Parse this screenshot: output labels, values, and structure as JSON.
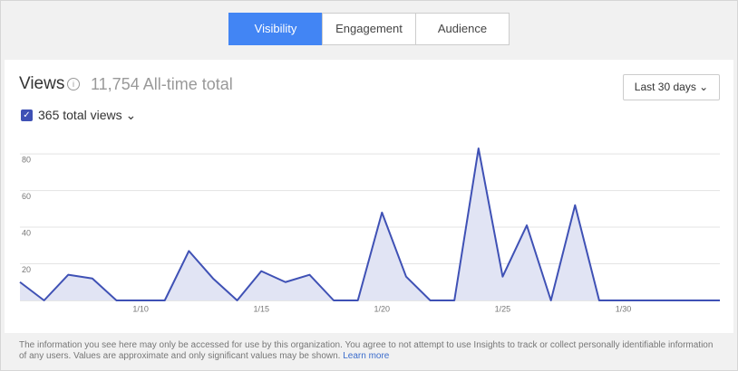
{
  "tabs": [
    "Visibility",
    "Engagement",
    "Audience"
  ],
  "header": {
    "metric": "Views",
    "total": "11,754 All-time total",
    "range": "Last 30 days",
    "series_label": "365 total views"
  },
  "chart_data": {
    "type": "area",
    "color": "#3f51b5",
    "fill": "#e1e4f4",
    "categories": [
      null,
      null,
      null,
      null,
      null,
      "1/10",
      null,
      null,
      null,
      null,
      "1/15",
      null,
      null,
      null,
      null,
      "1/20",
      null,
      null,
      null,
      null,
      "1/25",
      null,
      null,
      null,
      null,
      "1/30",
      null,
      null,
      null,
      null
    ],
    "values": [
      10,
      0,
      14,
      12,
      0,
      0,
      0,
      27,
      12,
      0,
      16,
      10,
      14,
      0,
      0,
      48,
      13,
      0,
      0,
      83,
      13,
      41,
      0,
      52,
      0,
      0,
      0,
      0,
      0,
      0
    ],
    "ylim": [
      0,
      85
    ],
    "yticks": [
      20,
      40,
      60,
      80
    ],
    "grid": true
  },
  "footer": {
    "text": "The information you see here may only be accessed for use by this organization. You agree to not attempt to use Insights to track or collect personally identifiable information of any users. Values are approximate and only significant values may be shown.",
    "link": "Learn more"
  }
}
